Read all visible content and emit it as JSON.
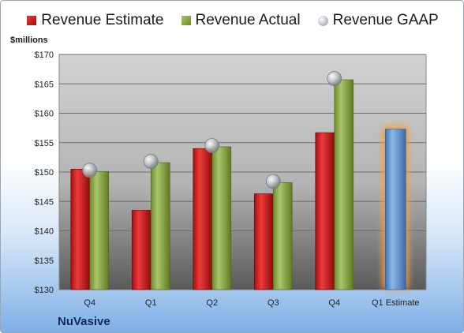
{
  "legend": {
    "estimate": "Revenue Estimate",
    "actual": "Revenue Actual",
    "gaap": "Revenue GAAP"
  },
  "unit_label": "$millions",
  "company": "NuVasive",
  "colors": {
    "estimate": "#c81e1e",
    "actual": "#8fae4a",
    "gaap": "#b8bcc2",
    "projected": "#6fa0d8",
    "projected_glow": "#f5a040"
  },
  "chart_data": {
    "type": "bar",
    "title": "",
    "xlabel": "",
    "ylabel": "$millions",
    "ylim": [
      130,
      170
    ],
    "yticks": [
      130,
      135,
      140,
      145,
      150,
      155,
      160,
      165,
      170
    ],
    "ytick_labels": [
      "$130",
      "$135",
      "$140",
      "$145",
      "$150",
      "$155",
      "$160",
      "$165",
      "$170"
    ],
    "categories": [
      "Q4",
      "Q1",
      "Q2",
      "Q3",
      "Q4",
      "Q1 Estimate"
    ],
    "grid": true,
    "legend_position": "top",
    "series": [
      {
        "name": "Revenue Estimate",
        "type": "bar",
        "values": [
          150.5,
          143.5,
          154.0,
          146.3,
          156.7,
          null
        ]
      },
      {
        "name": "Revenue Actual",
        "type": "bar",
        "values": [
          150.1,
          151.6,
          154.3,
          148.2,
          165.7,
          null
        ]
      },
      {
        "name": "Revenue GAAP",
        "type": "scatter",
        "values": [
          150.3,
          151.8,
          154.5,
          148.4,
          165.9,
          null
        ]
      }
    ],
    "projected": {
      "category": "Q1 Estimate",
      "value": 157.3
    }
  }
}
